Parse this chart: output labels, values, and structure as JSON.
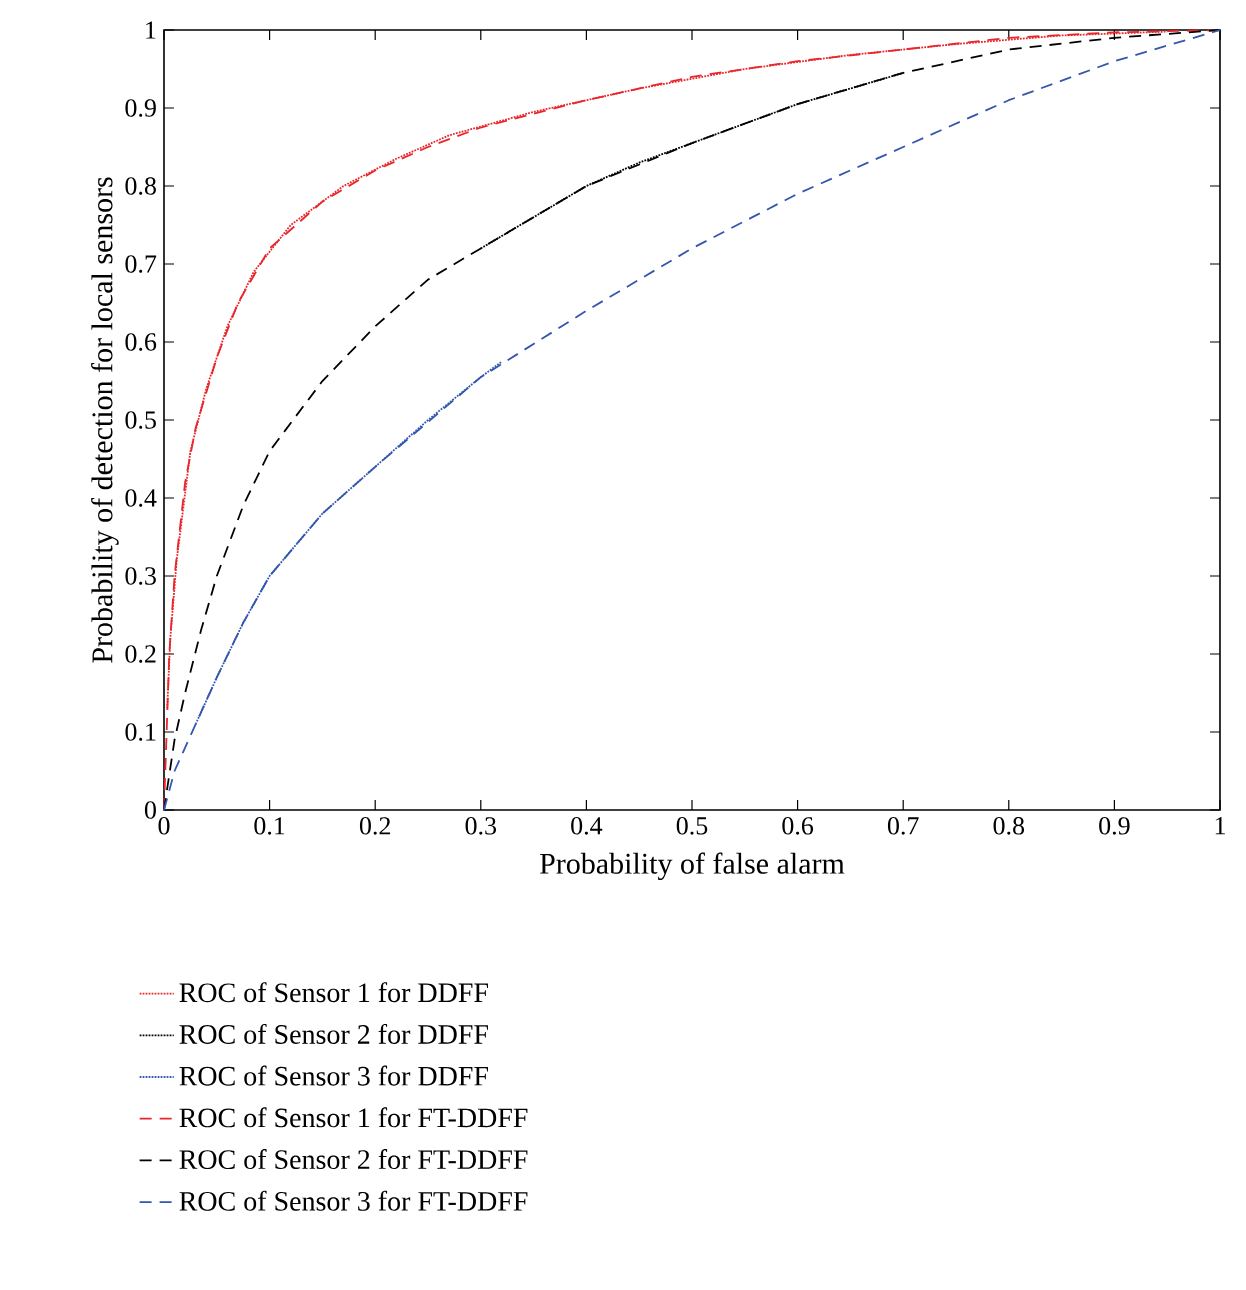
{
  "chart_data": {
    "type": "line",
    "xlabel": "Probability of false alarm",
    "ylabel": "Probability of detection for local sensors",
    "xlim": [
      0,
      1
    ],
    "ylim": [
      0,
      1
    ],
    "xticks": [
      0,
      0.1,
      0.2,
      0.3,
      0.4,
      0.5,
      0.6,
      0.7,
      0.8,
      0.9,
      1
    ],
    "yticks": [
      0,
      0.1,
      0.2,
      0.3,
      0.4,
      0.5,
      0.6,
      0.7,
      0.8,
      0.9,
      1
    ],
    "grid": false,
    "legend": "bottom",
    "series": [
      {
        "name": "ROC of Sensor 1 for DDFF",
        "color": "#e8262b",
        "line_style": "dotted",
        "x": [
          0.003,
          0.006,
          0.012,
          0.025,
          0.04,
          0.06,
          0.085,
          0.12,
          0.17,
          0.22,
          0.27,
          0.35,
          0.45,
          0.55,
          0.65,
          0.75,
          0.85,
          0.95
        ],
        "values": [
          0.13,
          0.22,
          0.32,
          0.46,
          0.54,
          0.62,
          0.69,
          0.75,
          0.8,
          0.835,
          0.865,
          0.895,
          0.925,
          0.95,
          0.968,
          0.982,
          0.993,
          0.998
        ]
      },
      {
        "name": "ROC of Sensor 2 for DDFF",
        "color": "#000000",
        "line_style": "dotted",
        "x": [
          0.3,
          0.35,
          0.4,
          0.45,
          0.5,
          0.55,
          0.6,
          0.65,
          0.7
        ],
        "values": [
          0.72,
          0.76,
          0.8,
          0.83,
          0.855,
          0.88,
          0.905,
          0.925,
          0.945
        ]
      },
      {
        "name": "ROC of Sensor 3 for DDFF",
        "color": "#3356b0",
        "line_style": "dotted",
        "x": [
          0.03,
          0.05,
          0.075,
          0.1,
          0.15,
          0.2,
          0.25,
          0.3,
          0.32
        ],
        "values": [
          0.11,
          0.17,
          0.24,
          0.3,
          0.38,
          0.44,
          0.5,
          0.555,
          0.575
        ]
      },
      {
        "name": "ROC of Sensor 1 for FT-DDFF",
        "color": "#e8262b",
        "line_style": "dashed",
        "x": [
          0,
          0.005,
          0.01,
          0.02,
          0.03,
          0.05,
          0.07,
          0.1,
          0.15,
          0.2,
          0.25,
          0.3,
          0.4,
          0.5,
          0.6,
          0.7,
          0.8,
          0.9,
          1
        ],
        "values": [
          0,
          0.2,
          0.3,
          0.42,
          0.49,
          0.58,
          0.65,
          0.72,
          0.78,
          0.82,
          0.85,
          0.875,
          0.91,
          0.94,
          0.96,
          0.975,
          0.99,
          0.997,
          1
        ]
      },
      {
        "name": "ROC of Sensor 2 for FT-DDFF",
        "color": "#000000",
        "line_style": "dashed",
        "x": [
          0,
          0.01,
          0.02,
          0.035,
          0.05,
          0.075,
          0.1,
          0.15,
          0.2,
          0.25,
          0.3,
          0.4,
          0.5,
          0.6,
          0.7,
          0.8,
          0.9,
          1
        ],
        "values": [
          0,
          0.09,
          0.15,
          0.23,
          0.3,
          0.39,
          0.46,
          0.55,
          0.62,
          0.68,
          0.72,
          0.8,
          0.855,
          0.905,
          0.945,
          0.975,
          0.99,
          1
        ]
      },
      {
        "name": "ROC of Sensor 3 for FT-DDFF",
        "color": "#3356b0",
        "line_style": "dashed",
        "x": [
          0,
          0.01,
          0.02,
          0.03,
          0.05,
          0.075,
          0.1,
          0.15,
          0.2,
          0.3,
          0.4,
          0.5,
          0.6,
          0.7,
          0.8,
          0.9,
          1
        ],
        "values": [
          0,
          0.05,
          0.08,
          0.11,
          0.17,
          0.24,
          0.3,
          0.38,
          0.44,
          0.555,
          0.64,
          0.72,
          0.79,
          0.85,
          0.91,
          0.96,
          1
        ]
      }
    ]
  }
}
